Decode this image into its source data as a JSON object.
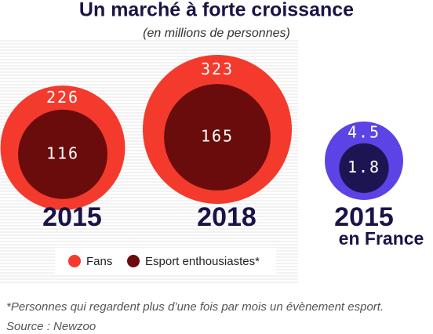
{
  "chart_data": {
    "type": "nested-bubble",
    "title": "Un marché à forte croissance",
    "subtitle": "(en millions de personnes)",
    "categories": [
      "2015",
      "2018",
      "2015"
    ],
    "category_sublabels": [
      null,
      null,
      "en France"
    ],
    "series": [
      {
        "name": "Fans",
        "color": "#f43a2c",
        "colors": [
          "#f43a2c",
          "#f43a2c",
          "#5b43e6"
        ],
        "values": [
          226,
          323,
          4.5
        ]
      },
      {
        "name": "Esport enthousiastes*",
        "color": "#6a0c0c",
        "colors": [
          "#6a0c0c",
          "#6a0c0c",
          "#1c1552"
        ],
        "values": [
          116,
          165,
          1.8
        ]
      }
    ],
    "footnote": "*Personnes qui regardent plus d’une fois par mois un évènement esport.",
    "source": "Source : Newzoo"
  }
}
